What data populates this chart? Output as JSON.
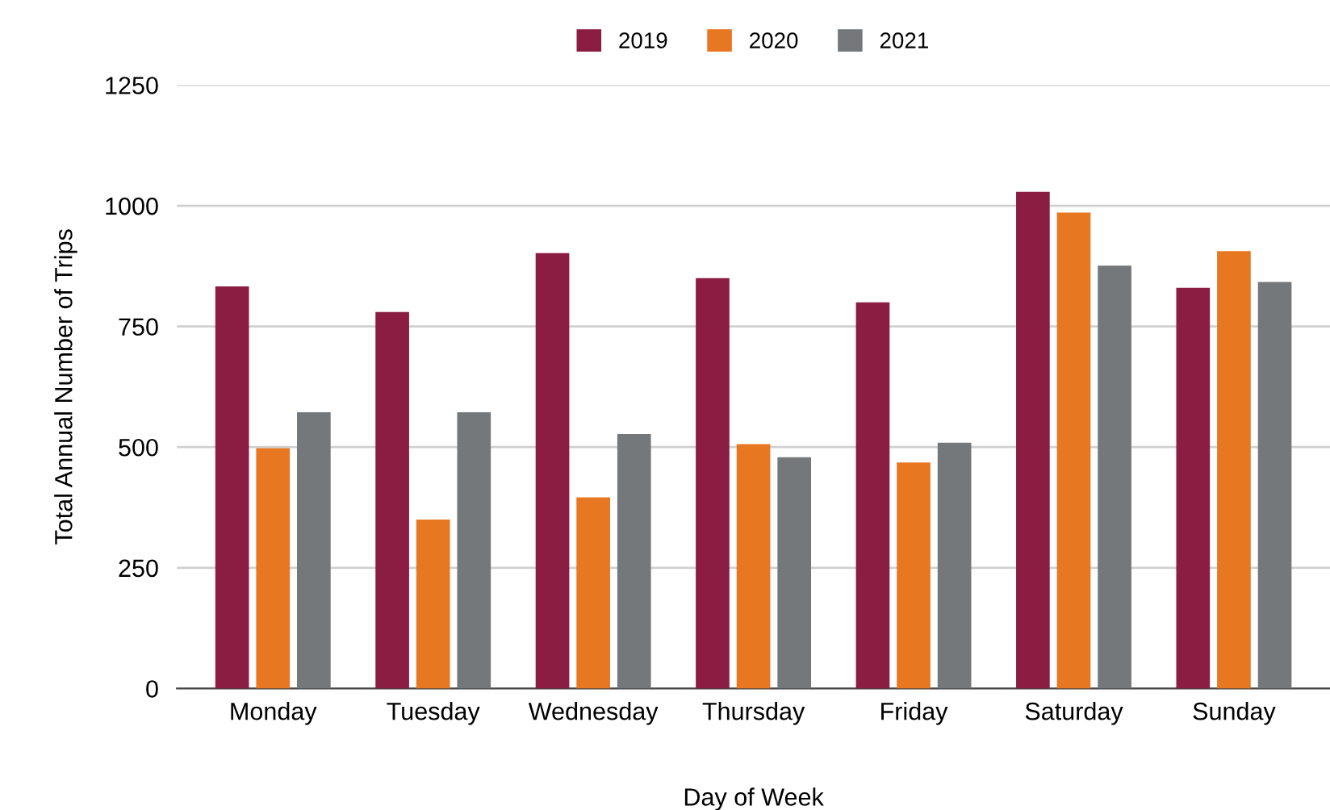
{
  "chart_data": {
    "type": "bar",
    "xlabel": "Day of Week",
    "ylabel": "Total Annual Number of Trips",
    "categories": [
      "Monday",
      "Tuesday",
      "Wednesday",
      "Thursday",
      "Friday",
      "Saturday",
      "Sunday"
    ],
    "series": [
      {
        "name": "2019",
        "color": "#8b1c42",
        "values": [
          833,
          780,
          902,
          850,
          800,
          1029,
          830
        ]
      },
      {
        "name": "2020",
        "color": "#e87722",
        "values": [
          498,
          350,
          396,
          506,
          468,
          986,
          906
        ]
      },
      {
        "name": "2021",
        "color": "#75787b",
        "values": [
          572,
          572,
          527,
          479,
          509,
          876,
          842
        ]
      }
    ],
    "ylim": [
      0,
      1250
    ],
    "yticks": [
      0,
      250,
      500,
      750,
      1000,
      1250
    ],
    "grid": "y",
    "legend": "top"
  }
}
